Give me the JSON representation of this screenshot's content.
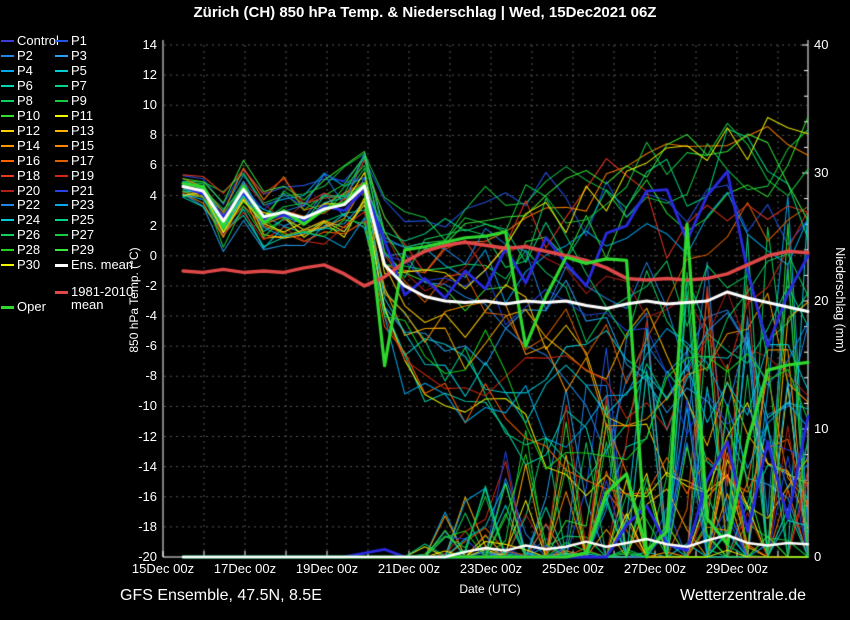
{
  "header": {
    "title": "Zürich  (CH)  850 hPa Temp. & Niederschlag | Wed, 15Dec2021 06Z"
  },
  "footer": {
    "left": "GFS Ensemble, 47.5N, 8.5E",
    "right": "Wetterzentrale.de"
  },
  "legend": {
    "entries": [
      {
        "label": "Control",
        "color": "#3b3bd8",
        "col": 0,
        "row": 0,
        "thick": false
      },
      {
        "label": "P1",
        "color": "#2255e8",
        "col": 1,
        "row": 0,
        "thick": false
      },
      {
        "label": "P2",
        "color": "#1f86e8",
        "col": 0,
        "row": 1,
        "thick": false
      },
      {
        "label": "P3",
        "color": "#28a0f0",
        "col": 1,
        "row": 1,
        "thick": false
      },
      {
        "label": "P4",
        "color": "#00aaf0",
        "col": 0,
        "row": 2,
        "thick": false
      },
      {
        "label": "P5",
        "color": "#00cfd8",
        "col": 1,
        "row": 2,
        "thick": false
      },
      {
        "label": "P6",
        "color": "#00d8b0",
        "col": 0,
        "row": 3,
        "thick": false
      },
      {
        "label": "P7",
        "color": "#00d585",
        "col": 1,
        "row": 3,
        "thick": false
      },
      {
        "label": "P8",
        "color": "#0ed060",
        "col": 0,
        "row": 4,
        "thick": false
      },
      {
        "label": "P9",
        "color": "#15cc40",
        "col": 1,
        "row": 4,
        "thick": false
      },
      {
        "label": "P10",
        "color": "#30e030",
        "col": 0,
        "row": 5,
        "thick": false
      },
      {
        "label": "P11",
        "color": "#f5f500",
        "col": 1,
        "row": 5,
        "thick": false
      },
      {
        "label": "P12",
        "color": "#ffd000",
        "col": 0,
        "row": 6,
        "thick": false
      },
      {
        "label": "P13",
        "color": "#ffb400",
        "col": 1,
        "row": 6,
        "thick": false
      },
      {
        "label": "P14",
        "color": "#ff9800",
        "col": 0,
        "row": 7,
        "thick": false
      },
      {
        "label": "P15",
        "color": "#ff8400",
        "col": 1,
        "row": 7,
        "thick": false
      },
      {
        "label": "P16",
        "color": "#ff6400",
        "col": 0,
        "row": 8,
        "thick": false
      },
      {
        "label": "P17",
        "color": "#e06000",
        "col": 1,
        "row": 8,
        "thick": false
      },
      {
        "label": "P18",
        "color": "#e83820",
        "col": 0,
        "row": 9,
        "thick": false
      },
      {
        "label": "P19",
        "color": "#d42810",
        "col": 1,
        "row": 9,
        "thick": false
      },
      {
        "label": "P20",
        "color": "#b02018",
        "col": 0,
        "row": 10,
        "thick": false
      },
      {
        "label": "P21",
        "color": "#2244e8",
        "col": 1,
        "row": 10,
        "thick": false
      },
      {
        "label": "P22",
        "color": "#1f86e8",
        "col": 0,
        "row": 11,
        "thick": false
      },
      {
        "label": "P23",
        "color": "#00aaf0",
        "col": 1,
        "row": 11,
        "thick": false
      },
      {
        "label": "P24",
        "color": "#00ccd8",
        "col": 0,
        "row": 12,
        "thick": false
      },
      {
        "label": "P25",
        "color": "#00d585",
        "col": 1,
        "row": 12,
        "thick": false
      },
      {
        "label": "P26",
        "color": "#10d060",
        "col": 0,
        "row": 13,
        "thick": false
      },
      {
        "label": "P27",
        "color": "#15cc40",
        "col": 1,
        "row": 13,
        "thick": false
      },
      {
        "label": "P28",
        "color": "#1ed41e",
        "col": 0,
        "row": 14,
        "thick": false
      },
      {
        "label": "P29",
        "color": "#38e838",
        "col": 1,
        "row": 14,
        "thick": false
      },
      {
        "label": "P30",
        "color": "#f5f500",
        "col": 0,
        "row": 15,
        "thick": false
      },
      {
        "label": "Ens. mean",
        "color": "#ffffff",
        "col": 1,
        "row": 15,
        "thick": true
      },
      {
        "label": "1981-2010",
        "label2": "mean",
        "color": "#e04848",
        "col": 1,
        "row": 16.8,
        "thick": true
      },
      {
        "label": "Oper",
        "color": "#2fd82f",
        "col": 0,
        "row": 17.8,
        "thick": true
      }
    ]
  },
  "chart_data": {
    "type": "line",
    "title": "Zürich (CH) 850 hPa Temp. & Niederschlag | Wed, 15Dec2021 06Z",
    "x_axis": {
      "label": "Date (UTC)",
      "tick_labels": [
        "15Dec 00z",
        "17Dec 00z",
        "19Dec 00z",
        "21Dec 00z",
        "23Dec 00z",
        "25Dec 00z",
        "27Dec 00z",
        "29Dec 00z"
      ],
      "points": 32,
      "step_hours": 12
    },
    "y_axis_left": {
      "label": "850 hPa Temp. (°C)",
      "range": [
        -20,
        14
      ],
      "tick_labels": [
        "14",
        "12",
        "10",
        "8",
        "6",
        "4",
        "2",
        "0",
        "-2",
        "-4",
        "-6",
        "-8",
        "-10",
        "-12",
        "-14",
        "-16",
        "-18",
        "-20"
      ]
    },
    "y_axis_right": {
      "label": "Niederschlag (mm)",
      "range": [
        0,
        40
      ],
      "tick_labels": [
        "40",
        "30",
        "20",
        "10",
        "0"
      ]
    },
    "grid": {
      "on": true,
      "color": "#545454"
    },
    "series": {
      "ens_mean_temp": {
        "name": "Ens. mean",
        "color": "#ffffff",
        "width": 3,
        "values": [
          4.6,
          4.3,
          2.3,
          4.4,
          2.6,
          2.9,
          2.5,
          3.1,
          3.4,
          4.65,
          -0.6,
          -2.0,
          -2.7,
          -3.0,
          -3.1,
          -3.0,
          -3.2,
          -3.0,
          -3.1,
          -3.0,
          -3.3,
          -3.5,
          -3.2,
          -3.0,
          -3.2,
          -3.1,
          -3.0,
          -2.4,
          -2.8,
          -3.1,
          -3.4,
          -3.7
        ]
      },
      "ens_mean_precip": {
        "name": "Ens. mean precip",
        "color": "#ffffff",
        "width": 2.5,
        "values": [
          0,
          0,
          0,
          0,
          0,
          0,
          0,
          0,
          0,
          0,
          0,
          0,
          0,
          0,
          0.4,
          0.7,
          0.5,
          0.9,
          0.6,
          0.8,
          1.2,
          0.8,
          1.1,
          1.4,
          1.0,
          0.8,
          1.3,
          1.7,
          1.1,
          0.9,
          1.1,
          1.0
        ]
      },
      "clim_mean_temp": {
        "name": "1981-2010 mean",
        "color": "#e04848",
        "width": 3.5,
        "values": [
          -1.0,
          -1.1,
          -0.9,
          -1.1,
          -1.0,
          -1.1,
          -0.8,
          -0.6,
          -1.2,
          -2.0,
          -1.4,
          -0.4,
          0.3,
          0.7,
          0.9,
          0.7,
          0.5,
          0.6,
          0.3,
          0.0,
          -0.3,
          -0.8,
          -1.5,
          -1.6,
          -1.5,
          -1.6,
          -1.5,
          -1.2,
          -0.6,
          0.0,
          0.3,
          0.2
        ]
      },
      "oper_temp": {
        "name": "Oper",
        "color": "#2fd82f",
        "width": 3.2,
        "values": [
          4.8,
          4.6,
          2.0,
          4.6,
          2.2,
          3.0,
          2.1,
          3.1,
          3.5,
          4.8,
          -7.3,
          0.4,
          0.6,
          0.9,
          1.2,
          1.3,
          1.6,
          -6.0,
          -2.7,
          -0.1,
          -0.5,
          -0.2,
          -0.3,
          -20
        ]
      },
      "oper_precip": {
        "name": "Oper precip",
        "color": "#2fd82f",
        "width": 3.2,
        "values": [
          0,
          0,
          0,
          0,
          0,
          0,
          0,
          0,
          0,
          0,
          0,
          0,
          0,
          0,
          0,
          0,
          0,
          0,
          0,
          0,
          0.3,
          5.0,
          6.5,
          0.5,
          2.0,
          26.0,
          3.0,
          1.0,
          9.0,
          14.6,
          15.0,
          15.2
        ]
      },
      "control_temp": {
        "name": "Control",
        "color": "#2a2ae0",
        "width": 2.8,
        "values": [
          4.6,
          4.1,
          2.6,
          4.2,
          2.4,
          2.7,
          2.3,
          3.3,
          3.0,
          4.4,
          1.0,
          -2.6,
          -1.5,
          -2.8,
          -1.0,
          -2.2,
          0.5,
          -1.8,
          1.2,
          -0.5,
          -2.0,
          1.5,
          2.0,
          4.3,
          4.4,
          1.0,
          4.0,
          5.6,
          -1.0,
          -6.0,
          -2.5,
          0.0
        ]
      },
      "control_precip": {
        "name": "Control precip",
        "color": "#2a2ae0",
        "width": 2.8,
        "values": [
          0,
          0,
          0,
          0,
          0,
          0,
          0,
          0,
          0,
          0.3,
          0.6,
          0,
          0,
          0,
          0,
          0,
          0,
          0,
          0,
          0,
          0,
          0,
          2.5,
          4,
          1,
          0.5,
          6,
          9,
          2,
          9,
          3,
          11
        ]
      }
    },
    "ensemble_members": {
      "count": 30,
      "labels": [
        "P1",
        "P2",
        "P3",
        "P4",
        "P5",
        "P6",
        "P7",
        "P8",
        "P9",
        "P10",
        "P11",
        "P12",
        "P13",
        "P14",
        "P15",
        "P16",
        "P17",
        "P18",
        "P19",
        "P20",
        "P21",
        "P22",
        "P23",
        "P24",
        "P25",
        "P26",
        "P27",
        "P28",
        "P29",
        "P30"
      ],
      "colors": [
        "#2255e8",
        "#1f86e8",
        "#28a0f0",
        "#00aaf0",
        "#00cfd8",
        "#00d8b0",
        "#00d585",
        "#0ed060",
        "#15cc40",
        "#30e030",
        "#f5f500",
        "#ffd000",
        "#ffb400",
        "#ff9800",
        "#ff8400",
        "#ff6400",
        "#e06000",
        "#e83820",
        "#d42810",
        "#b02018",
        "#2244e8",
        "#1f86e8",
        "#00aaf0",
        "#00ccd8",
        "#00d585",
        "#10d060",
        "#15cc40",
        "#1ed41e",
        "#38e838",
        "#f5f500"
      ],
      "generation": {
        "seed_temp": 7000,
        "seed_precip": 9000,
        "spread_lo": [
          0.7,
          0.9,
          1.6,
          1.6,
          1.8,
          2.0,
          2.0,
          2.2,
          2.2,
          2.5,
          4.5,
          6,
          6.5,
          7,
          7.5,
          8,
          9,
          10,
          10.5,
          11,
          11.5,
          12,
          12,
          12.5,
          12.5,
          13,
          13,
          13.5,
          14,
          14.5,
          15,
          15.5
        ],
        "spread_hi": [
          0.7,
          0.9,
          1.6,
          1.8,
          2.0,
          2.2,
          2.2,
          2.5,
          2.5,
          2.8,
          3.5,
          4.5,
          5,
          5.5,
          6,
          6.5,
          7,
          7.5,
          8,
          8,
          8.5,
          9,
          9,
          9.5,
          9.5,
          10,
          10,
          10.5,
          11,
          11.5,
          12,
          12.5
        ],
        "precip": {
          "start_index": 12,
          "base": 2,
          "slope": 1.6,
          "zero_prob": 0.5,
          "max": 34
        }
      }
    }
  }
}
